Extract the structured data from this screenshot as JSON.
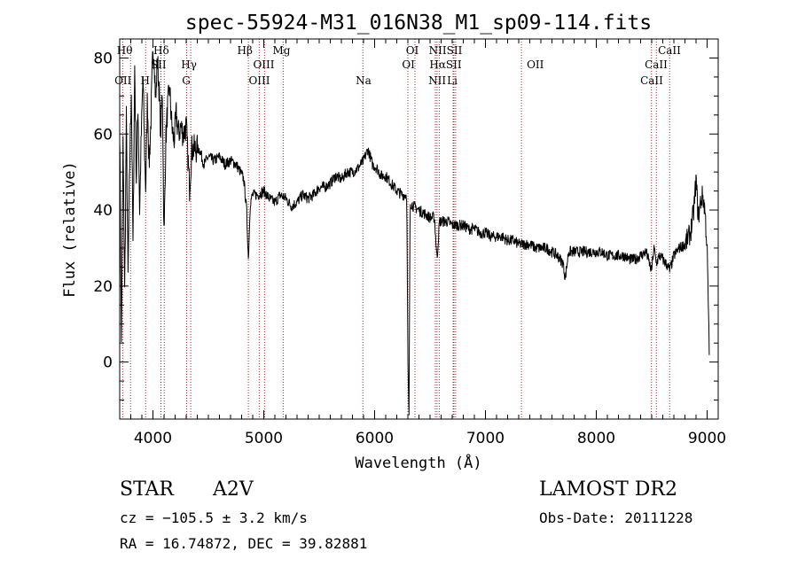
{
  "chart_data": {
    "type": "line",
    "title": "spec-55924-M31_016N38_M1_sp09-114.fits",
    "xlabel": "Wavelength (Å)",
    "ylabel": "Flux (relative)",
    "xlim": [
      3700,
      9100
    ],
    "ylim": [
      -15,
      85
    ],
    "x_ticks": [
      4000,
      5000,
      6000,
      7000,
      8000,
      9000
    ],
    "y_ticks": [
      0,
      20,
      40,
      60,
      80
    ],
    "grid": false,
    "spectrum_anchors": [
      [
        3700,
        62
      ],
      [
        3715,
        5
      ],
      [
        3730,
        58
      ],
      [
        3745,
        18
      ],
      [
        3760,
        64
      ],
      [
        3775,
        22
      ],
      [
        3790,
        52
      ],
      [
        3805,
        72
      ],
      [
        3820,
        30
      ],
      [
        3835,
        78
      ],
      [
        3850,
        48
      ],
      [
        3865,
        68
      ],
      [
        3880,
        40
      ],
      [
        3895,
        60
      ],
      [
        3910,
        75
      ],
      [
        3925,
        55
      ],
      [
        3935,
        45
      ],
      [
        3950,
        70
      ],
      [
        3965,
        52
      ],
      [
        3980,
        62
      ],
      [
        3995,
        78
      ],
      [
        4010,
        82
      ],
      [
        4025,
        68
      ],
      [
        4040,
        80
      ],
      [
        4055,
        72
      ],
      [
        4070,
        60
      ],
      [
        4085,
        72
      ],
      [
        4100,
        31
      ],
      [
        4115,
        58
      ],
      [
        4130,
        66
      ],
      [
        4150,
        72
      ],
      [
        4170,
        62
      ],
      [
        4190,
        58
      ],
      [
        4210,
        65
      ],
      [
        4230,
        60
      ],
      [
        4250,
        62
      ],
      [
        4275,
        60
      ],
      [
        4300,
        62
      ],
      [
        4330,
        46
      ],
      [
        4350,
        56
      ],
      [
        4380,
        56
      ],
      [
        4420,
        56
      ],
      [
        4460,
        52
      ],
      [
        4500,
        54
      ],
      [
        4550,
        53
      ],
      [
        4600,
        54
      ],
      [
        4650,
        52
      ],
      [
        4700,
        53
      ],
      [
        4750,
        52
      ],
      [
        4790,
        50
      ],
      [
        4820,
        48
      ],
      [
        4845,
        40
      ],
      [
        4861,
        27
      ],
      [
        4878,
        42
      ],
      [
        4900,
        44
      ],
      [
        4950,
        44
      ],
      [
        5000,
        45
      ],
      [
        5050,
        43
      ],
      [
        5100,
        42
      ],
      [
        5150,
        44
      ],
      [
        5200,
        43
      ],
      [
        5250,
        41
      ],
      [
        5300,
        42
      ],
      [
        5350,
        44
      ],
      [
        5400,
        43
      ],
      [
        5450,
        44
      ],
      [
        5500,
        46
      ],
      [
        5550,
        46
      ],
      [
        5600,
        47
      ],
      [
        5650,
        49
      ],
      [
        5700,
        48
      ],
      [
        5750,
        50
      ],
      [
        5800,
        50
      ],
      [
        5850,
        51
      ],
      [
        5900,
        53
      ],
      [
        5940,
        56
      ],
      [
        5980,
        52
      ],
      [
        6020,
        51
      ],
      [
        6060,
        49
      ],
      [
        6100,
        49
      ],
      [
        6150,
        47
      ],
      [
        6200,
        45
      ],
      [
        6250,
        44
      ],
      [
        6290,
        44
      ],
      [
        6300,
        0
      ],
      [
        6310,
        -15
      ],
      [
        6320,
        42
      ],
      [
        6350,
        41
      ],
      [
        6400,
        40
      ],
      [
        6450,
        39
      ],
      [
        6500,
        38
      ],
      [
        6540,
        38
      ],
      [
        6563,
        27
      ],
      [
        6585,
        37
      ],
      [
        6620,
        37
      ],
      [
        6660,
        37
      ],
      [
        6700,
        36
      ],
      [
        6750,
        36
      ],
      [
        6800,
        36
      ],
      [
        6850,
        35
      ],
      [
        6900,
        35
      ],
      [
        6950,
        34
      ],
      [
        7000,
        34
      ],
      [
        7050,
        33
      ],
      [
        7100,
        33
      ],
      [
        7150,
        33
      ],
      [
        7200,
        32
      ],
      [
        7250,
        32
      ],
      [
        7300,
        31
      ],
      [
        7350,
        31
      ],
      [
        7400,
        31
      ],
      [
        7450,
        30
      ],
      [
        7500,
        30
      ],
      [
        7550,
        30
      ],
      [
        7600,
        29
      ],
      [
        7650,
        28
      ],
      [
        7700,
        26
      ],
      [
        7720,
        22
      ],
      [
        7750,
        29
      ],
      [
        7800,
        29
      ],
      [
        7850,
        29
      ],
      [
        7900,
        29
      ],
      [
        7950,
        29
      ],
      [
        8000,
        29
      ],
      [
        8050,
        29
      ],
      [
        8100,
        28
      ],
      [
        8150,
        28
      ],
      [
        8200,
        28
      ],
      [
        8250,
        28
      ],
      [
        8300,
        27
      ],
      [
        8350,
        27
      ],
      [
        8400,
        28
      ],
      [
        8450,
        29
      ],
      [
        8498,
        24
      ],
      [
        8520,
        30
      ],
      [
        8542,
        26
      ],
      [
        8570,
        28
      ],
      [
        8600,
        27
      ],
      [
        8650,
        25
      ],
      [
        8662,
        24
      ],
      [
        8700,
        28
      ],
      [
        8750,
        30
      ],
      [
        8800,
        31
      ],
      [
        8850,
        34
      ],
      [
        8880,
        40
      ],
      [
        8900,
        48
      ],
      [
        8920,
        38
      ],
      [
        8940,
        42
      ],
      [
        8960,
        44
      ],
      [
        8980,
        40
      ],
      [
        9000,
        30
      ],
      [
        9020,
        1
      ]
    ],
    "annotation_lines": [
      {
        "name": "OII",
        "wavelength": 3727
      },
      {
        "name": "Hθ",
        "wavelength": 3798
      },
      {
        "name": "H",
        "wavelength": 3934
      },
      {
        "name": "SII",
        "wavelength": 4072
      },
      {
        "name": "Hδ",
        "wavelength": 4102
      },
      {
        "name": "G",
        "wavelength": 4304
      },
      {
        "name": "Hγ",
        "wavelength": 4341
      },
      {
        "name": "Hβ",
        "wavelength": 4861
      },
      {
        "name": "OIII",
        "wavelength": 4959
      },
      {
        "name": "OIII",
        "wavelength": 5007
      },
      {
        "name": "Mg",
        "wavelength": 5175
      },
      {
        "name": "Na",
        "wavelength": 5894
      },
      {
        "name": "OI",
        "wavelength": 6300
      },
      {
        "name": "OI",
        "wavelength": 6364
      },
      {
        "name": "NII",
        "wavelength": 6548
      },
      {
        "name": "Hα",
        "wavelength": 6563
      },
      {
        "name": "NII",
        "wavelength": 6583
      },
      {
        "name": "SII",
        "wavelength": 6716
      },
      {
        "name": "SII",
        "wavelength": 6731
      },
      {
        "name": "Li",
        "wavelength": 6708
      },
      {
        "name": "OII",
        "wavelength": 7325
      },
      {
        "name": "CaII",
        "wavelength": 8498
      },
      {
        "name": "CaII",
        "wavelength": 8542
      },
      {
        "name": "CaII",
        "wavelength": 8662
      }
    ],
    "line_labels": [
      {
        "text": "Hθ",
        "wavelength": 3745,
        "row": 1
      },
      {
        "text": "Hδ",
        "wavelength": 4075,
        "row": 1
      },
      {
        "text": "Hβ",
        "wavelength": 4830,
        "row": 1
      },
      {
        "text": "Mg",
        "wavelength": 5160,
        "row": 1
      },
      {
        "text": "OI",
        "wavelength": 6340,
        "row": 1
      },
      {
        "text": "NIISII",
        "wavelength": 6640,
        "row": 1
      },
      {
        "text": "CaII",
        "wavelength": 8660,
        "row": 1
      },
      {
        "text": "SII",
        "wavelength": 4050,
        "row": 2
      },
      {
        "text": "Hγ",
        "wavelength": 4325,
        "row": 2
      },
      {
        "text": "OIII",
        "wavelength": 5000,
        "row": 2
      },
      {
        "text": "OI",
        "wavelength": 6305,
        "row": 2
      },
      {
        "text": "HαSII",
        "wavelength": 6640,
        "row": 2
      },
      {
        "text": "OII",
        "wavelength": 7450,
        "row": 2
      },
      {
        "text": "CaII",
        "wavelength": 8540,
        "row": 2
      },
      {
        "text": "OII",
        "wavelength": 3730,
        "row": 3
      },
      {
        "text": "H",
        "wavelength": 3930,
        "row": 3
      },
      {
        "text": "G",
        "wavelength": 4300,
        "row": 3
      },
      {
        "text": "OIII",
        "wavelength": 4960,
        "row": 3
      },
      {
        "text": "Na",
        "wavelength": 5900,
        "row": 3
      },
      {
        "text": "NII",
        "wavelength": 6565,
        "row": 3
      },
      {
        "text": "Li",
        "wavelength": 6700,
        "row": 3
      },
      {
        "text": "CaII",
        "wavelength": 8500,
        "row": 3
      }
    ]
  },
  "info": {
    "object_class": "STAR",
    "subclass": "A2V",
    "survey": "LAMOST DR2",
    "redshift": "cz = −105.5 ± 3.2 km/s",
    "obs_date": "Obs-Date: 20111228",
    "coords": "RA =  16.74872, DEC =  39.82881"
  },
  "colors": {
    "spectrum": "#000000",
    "annotation_line": "#a52a2a",
    "background": "#ffffff"
  }
}
